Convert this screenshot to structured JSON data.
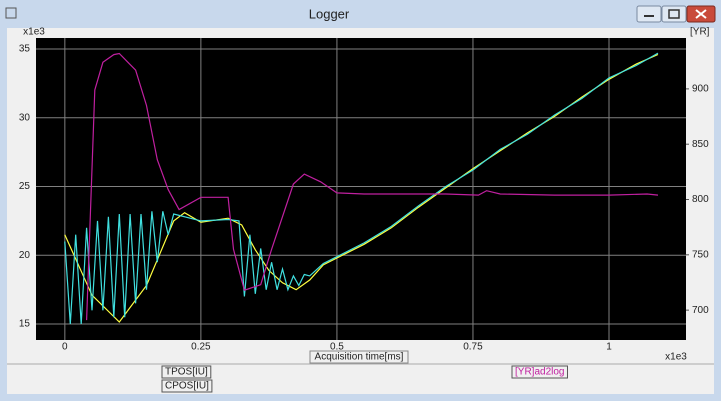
{
  "window": {
    "title": "Logger"
  },
  "chart_data": {
    "type": "line",
    "y_multiplier": "x1e3",
    "y2label": "[YR]",
    "xlabel": "Acquisition time[ms]",
    "x_multiplier": "x1e3",
    "xlim": [
      -0.053,
      1.1415
    ],
    "xticks": [
      0,
      0.25,
      0.5,
      0.75,
      1
    ],
    "ylim": [
      13.84,
      35.8
    ],
    "yticks": [
      15,
      20,
      25,
      30,
      35
    ],
    "y2lim": [
      673,
      946
    ],
    "y2ticks": [
      700,
      750,
      800,
      850,
      900
    ],
    "grid": true,
    "series": [
      {
        "name": "TPOS[IU]",
        "color": "#ffff40",
        "axis": "y",
        "x": [
          0,
          0.05,
          0.1,
          0.15,
          0.2,
          0.22,
          0.25,
          0.3,
          0.325,
          0.35,
          0.375,
          0.4,
          0.425,
          0.45,
          0.475,
          0.5,
          0.55,
          0.6,
          0.65,
          0.7,
          0.75,
          0.8,
          0.85,
          0.9,
          0.95,
          1.0,
          1.05,
          1.09
        ],
        "values": [
          21.5,
          17.1,
          15.15,
          17.8,
          22.5,
          23.1,
          22.4,
          22.7,
          22.2,
          20.4,
          18.9,
          18.0,
          17.5,
          18.2,
          19.3,
          19.8,
          20.8,
          22.0,
          23.5,
          24.9,
          26.3,
          27.6,
          28.9,
          30.1,
          31.5,
          32.8,
          33.9,
          34.6
        ]
      },
      {
        "name": "CPOS[IU]",
        "color": "#40e0e0",
        "axis": "y",
        "x": [
          0,
          0.01,
          0.02,
          0.03,
          0.04,
          0.05,
          0.06,
          0.07,
          0.08,
          0.09,
          0.1,
          0.11,
          0.12,
          0.13,
          0.14,
          0.15,
          0.16,
          0.17,
          0.18,
          0.19,
          0.2,
          0.25,
          0.3,
          0.32,
          0.33,
          0.34,
          0.35,
          0.36,
          0.37,
          0.38,
          0.39,
          0.4,
          0.41,
          0.42,
          0.43,
          0.44,
          0.45,
          0.475,
          0.5,
          0.55,
          0.6,
          0.65,
          0.7,
          0.75,
          0.8,
          0.85,
          0.9,
          0.95,
          1.0,
          1.05,
          1.09
        ],
        "values": [
          21,
          15,
          21.5,
          15,
          22,
          16,
          22.5,
          16,
          22.8,
          15.5,
          23,
          15.5,
          23,
          16.5,
          23,
          17.5,
          23.2,
          19.5,
          23.2,
          21.5,
          23,
          22.5,
          22.6,
          22.5,
          17,
          21.5,
          17.2,
          20.5,
          17.5,
          19.5,
          17.5,
          19,
          17.5,
          18.5,
          17.8,
          18.6,
          18.5,
          19.4,
          19.9,
          20.9,
          22.1,
          23.6,
          25.0,
          26.2,
          27.7,
          28.8,
          30.2,
          31.4,
          32.9,
          33.8,
          34.7
        ]
      },
      {
        "name": "[YR]ad2log",
        "color": "#c020a0",
        "axis": "y2",
        "x": [
          0.04,
          0.055,
          0.07,
          0.09,
          0.1,
          0.13,
          0.15,
          0.17,
          0.19,
          0.21,
          0.25,
          0.3,
          0.31,
          0.33,
          0.36,
          0.38,
          0.42,
          0.44,
          0.47,
          0.5,
          0.55,
          0.6,
          0.7,
          0.76,
          0.775,
          0.8,
          0.9,
          1.0,
          1.07,
          1.09
        ],
        "values": [
          691,
          899,
          924,
          931,
          932,
          917,
          885,
          836,
          809,
          791,
          802,
          802,
          755,
          718,
          723,
          755,
          814,
          823,
          816,
          806,
          805,
          805,
          805,
          804,
          808,
          805,
          804,
          804,
          805,
          804
        ]
      }
    ]
  }
}
